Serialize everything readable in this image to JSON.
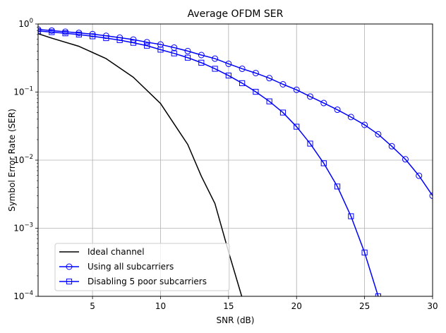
{
  "chart_data": {
    "type": "line",
    "title": "Average OFDM SER",
    "xlabel": "SNR (dB)",
    "ylabel": "Symbol Error Rate (SER)",
    "xlim": [
      1,
      30
    ],
    "ylim": [
      0.0001,
      1
    ],
    "yscale": "log",
    "grid": true,
    "legend_position": "lower-left",
    "x_ticks": [
      5,
      10,
      15,
      20,
      25,
      30
    ],
    "x_tick_labels": [
      "5",
      "10",
      "15",
      "20",
      "25",
      "30"
    ],
    "y_ticks": [
      0.0001,
      0.001,
      0.01,
      0.1,
      1
    ],
    "y_tick_labels": [
      {
        "base": "10",
        "exp": "−4"
      },
      {
        "base": "10",
        "exp": "−3"
      },
      {
        "base": "10",
        "exp": "−2"
      },
      {
        "base": "10",
        "exp": "−1"
      },
      {
        "base": "10",
        "exp": "0"
      }
    ],
    "series": [
      {
        "name": "Ideal channel",
        "color": "#000000",
        "marker": "none",
        "x": [
          1,
          2,
          4,
          6,
          8,
          10,
          12,
          13,
          14,
          15,
          15.8,
          16.2
        ],
        "y": [
          0.72,
          0.62,
          0.47,
          0.31,
          0.165,
          0.068,
          0.017,
          0.0058,
          0.0023,
          0.00045,
          0.00013,
          7e-05
        ]
      },
      {
        "name": "Using all subcarriers",
        "color": "#0000ff",
        "marker": "circle",
        "x": [
          1,
          2,
          3,
          4,
          5,
          6,
          7,
          8,
          9,
          10,
          11,
          12,
          13,
          14,
          15,
          16,
          17,
          18,
          19,
          20,
          21,
          22,
          23,
          24,
          25,
          26,
          27,
          28,
          29,
          30
        ],
        "y": [
          0.83,
          0.8,
          0.77,
          0.74,
          0.71,
          0.67,
          0.63,
          0.59,
          0.54,
          0.5,
          0.45,
          0.4,
          0.35,
          0.31,
          0.26,
          0.22,
          0.19,
          0.16,
          0.13,
          0.108,
          0.086,
          0.069,
          0.055,
          0.043,
          0.033,
          0.024,
          0.016,
          0.0103,
          0.0059,
          0.003
        ]
      },
      {
        "name": "Disabling 5 poor subcarriers",
        "color": "#0000ff",
        "marker": "square",
        "x": [
          1,
          2,
          3,
          4,
          5,
          6,
          7,
          8,
          9,
          10,
          11,
          12,
          13,
          14,
          15,
          16,
          17,
          18,
          19,
          20,
          21,
          22,
          23,
          24,
          25,
          26
        ],
        "y": [
          0.79,
          0.76,
          0.73,
          0.7,
          0.66,
          0.62,
          0.58,
          0.53,
          0.48,
          0.42,
          0.37,
          0.32,
          0.27,
          0.22,
          0.175,
          0.135,
          0.101,
          0.073,
          0.05,
          0.031,
          0.0175,
          0.009,
          0.0041,
          0.0015,
          0.00044,
          0.0001
        ]
      }
    ]
  }
}
